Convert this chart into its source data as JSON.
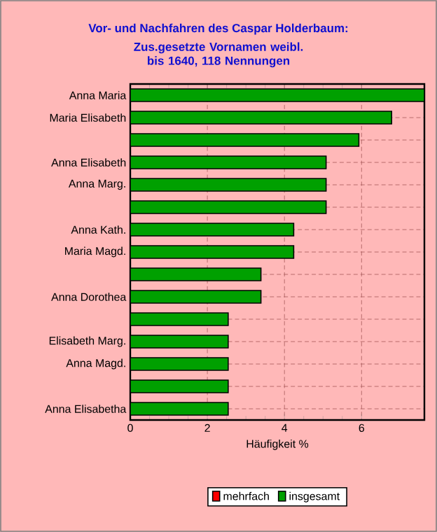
{
  "chart_data": {
    "type": "bar",
    "orientation": "horizontal",
    "title": "Vor- und Nachfahren des Caspar Holderbaum:",
    "subtitle": "Zus.gesetzte Vornamen weibl. bis 1640, 118 Nennungen",
    "xlabel": "Häufigkeit %",
    "categories": [
      "Anna Maria",
      "Maria Elisabeth",
      null,
      "Anna Elisabeth",
      "Anna Marg.",
      null,
      "Anna Kath.",
      "Maria Magd.",
      null,
      "Anna Dorothea",
      null,
      "Elisabeth Marg.",
      "Anna Magd.",
      null,
      "Anna Elisabetha"
    ],
    "series": [
      {
        "name": "mehrfach",
        "color": "#ff0000",
        "values": [
          null,
          null,
          null,
          null,
          null,
          null,
          null,
          null,
          null,
          null,
          null,
          null,
          null,
          null,
          null
        ]
      },
      {
        "name": "insgesamt",
        "color": "#00a000",
        "values": [
          7.63,
          6.78,
          5.93,
          5.08,
          5.08,
          5.08,
          4.24,
          4.24,
          3.39,
          3.39,
          2.54,
          2.54,
          2.54,
          2.54,
          2.54
        ]
      }
    ],
    "xlim": [
      0,
      7.63
    ],
    "xticks": [
      0,
      2,
      4,
      6
    ],
    "grid": true,
    "legend": "bottom"
  }
}
